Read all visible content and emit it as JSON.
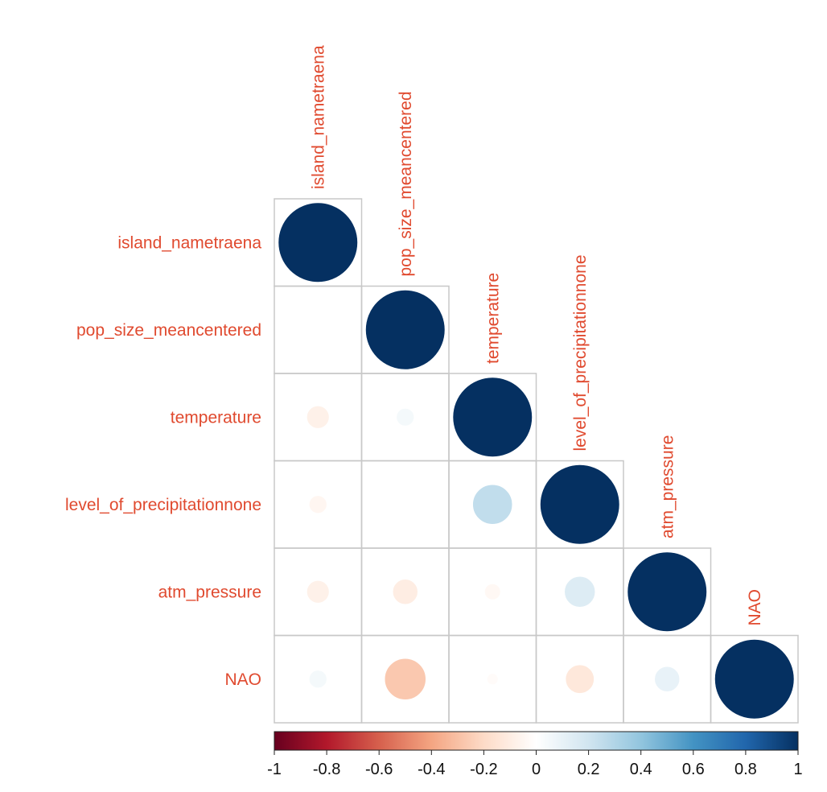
{
  "chart_data": {
    "type": "heatmap",
    "title": "",
    "variables": [
      "island_nametraena",
      "pop_size_meancentered",
      "temperature",
      "level_of_precipitationnone",
      "atm_pressure",
      "NAO"
    ],
    "correlations": [
      [
        1.0,
        0.0,
        -0.08,
        -0.05,
        -0.08,
        0.05
      ],
      [
        0.0,
        1.0,
        0.05,
        0.0,
        -0.1,
        -0.27
      ],
      [
        -0.08,
        0.05,
        1.0,
        0.25,
        -0.04,
        -0.02
      ],
      [
        -0.05,
        0.0,
        0.25,
        1.0,
        0.15,
        -0.13
      ],
      [
        -0.08,
        -0.1,
        -0.04,
        0.15,
        1.0,
        0.1
      ],
      [
        0.05,
        -0.27,
        -0.02,
        -0.13,
        0.1,
        1.0
      ]
    ],
    "layout": "lower-triangle",
    "colorbar": {
      "range": [
        -1,
        1
      ],
      "ticks": [
        "-1",
        "-0.8",
        "-0.6",
        "-0.4",
        "-0.2",
        "0",
        "0.2",
        "0.4",
        "0.6",
        "0.8",
        "1"
      ],
      "stops": [
        "#67001F",
        "#B2182B",
        "#D6604D",
        "#F4A582",
        "#FDDBC7",
        "#FFFFFF",
        "#D1E5F0",
        "#92C5DE",
        "#4393C3",
        "#2166AC",
        "#053061"
      ]
    },
    "label_color": "#E04A2F",
    "grid_color": "#C8C8C8"
  }
}
